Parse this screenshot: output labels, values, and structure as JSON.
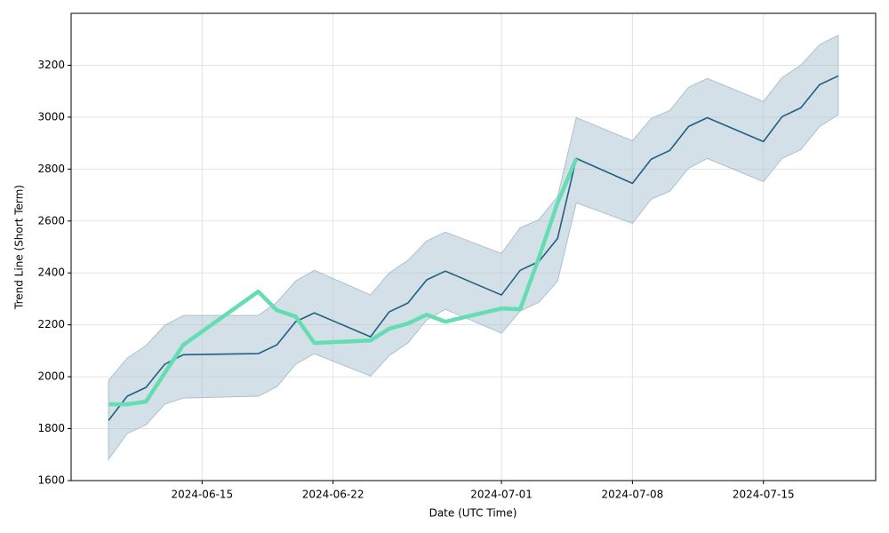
{
  "chart_data": {
    "type": "line",
    "xlabel": "Date (UTC Time)",
    "ylabel": "Trend Line (Short Term)",
    "x": [
      "2024-06-10",
      "2024-06-11",
      "2024-06-12",
      "2024-06-13",
      "2024-06-14",
      "2024-06-18",
      "2024-06-19",
      "2024-06-20",
      "2024-06-21",
      "2024-06-24",
      "2024-06-25",
      "2024-06-26",
      "2024-06-27",
      "2024-06-28",
      "2024-07-01",
      "2024-07-02",
      "2024-07-03",
      "2024-07-04",
      "2024-07-05",
      "2024-07-08",
      "2024-07-09",
      "2024-07-10",
      "2024-07-11",
      "2024-07-12",
      "2024-07-15",
      "2024-07-16",
      "2024-07-17",
      "2024-07-18",
      "2024-07-19"
    ],
    "band": {
      "color": "#a9c1d1",
      "upper": [
        1986,
        2072,
        2120,
        2198,
        2236,
        2236,
        2287,
        2369,
        2410,
        2315,
        2400,
        2448,
        2523,
        2557,
        2475,
        2574,
        2605,
        2694,
        2998,
        2909,
        2995,
        3026,
        3115,
        3149,
        3060,
        3152,
        3200,
        3279,
        3316
      ],
      "lower": [
        1682,
        1781,
        1815,
        1894,
        1918,
        1925,
        1962,
        2048,
        2089,
        2003,
        2082,
        2130,
        2219,
        2260,
        2168,
        2253,
        2287,
        2369,
        2670,
        2591,
        2684,
        2715,
        2803,
        2841,
        2752,
        2841,
        2875,
        2964,
        3009
      ]
    },
    "series": [
      {
        "color": "#1f5f82",
        "width": 1.6,
        "values": [
          1832,
          1925,
          1959,
          2048,
          2085,
          2089,
          2123,
          2212,
          2246,
          2154,
          2250,
          2284,
          2373,
          2407,
          2315,
          2410,
          2444,
          2533,
          2841,
          2745,
          2838,
          2872,
          2964,
          2998,
          2906,
          3002,
          3036,
          3125,
          3159
        ]
      },
      {
        "color": "#66dcb3",
        "width": 4.5,
        "values": [
          1894,
          1894,
          1904,
          2014,
          2123,
          2328,
          2256,
          2232,
          2130,
          2140,
          2185,
          2205,
          2239,
          2212,
          2263,
          2260,
          2458,
          2670,
          2841,
          null,
          null,
          null,
          null,
          null,
          null,
          null,
          null,
          null,
          null
        ]
      }
    ],
    "xlim": [
      "2024-06-08",
      "2024-07-21"
    ],
    "xticks": [
      "2024-06-15",
      "2024-06-22",
      "2024-07-01",
      "2024-07-08",
      "2024-07-15"
    ],
    "ylim": [
      1600,
      3400
    ],
    "yticks": [
      1600,
      1800,
      2000,
      2200,
      2400,
      2600,
      2800,
      3000,
      3200
    ],
    "grid": true
  }
}
